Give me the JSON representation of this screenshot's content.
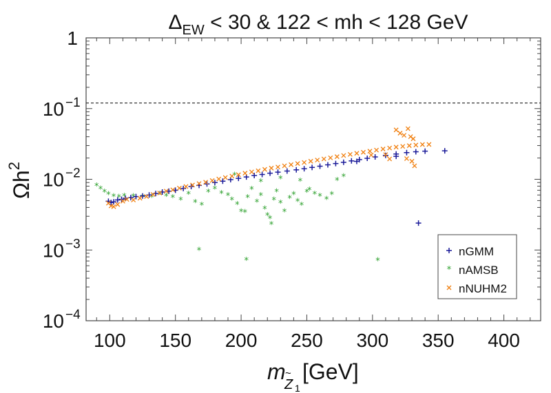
{
  "chart_data": {
    "type": "scatter",
    "title": {
      "base": "Δ",
      "sub": "EW",
      "rest": " < 30 & 122 < mh < 128 GeV"
    },
    "xlabel": {
      "m": "m",
      "z": "Z",
      "zsub": "1",
      "tilde": "~",
      "unit": " [GeV]"
    },
    "ylabel": {
      "base": "Ωh",
      "sup": "2"
    },
    "xlim": [
      82,
      428
    ],
    "ylim_log10": [
      -4,
      0
    ],
    "x_ticks": [
      100,
      150,
      200,
      250,
      300,
      350,
      400
    ],
    "y_ticks": [
      {
        "value": 1,
        "base": "1",
        "sup": ""
      },
      {
        "value": 0.1,
        "base": "10",
        "sup": "−1"
      },
      {
        "value": 0.01,
        "base": "10",
        "sup": "−2"
      },
      {
        "value": 0.001,
        "base": "10",
        "sup": "−3"
      },
      {
        "value": 0.0001,
        "base": "10",
        "sup": "−4"
      }
    ],
    "reference_line": {
      "y": 0.12,
      "style": "dashed"
    },
    "legend_position": "bottom-right",
    "series": [
      {
        "name": "nGMM",
        "marker": "+",
        "color": "#1a1a99",
        "points": [
          [
            99,
            0.0049
          ],
          [
            101,
            0.0047
          ],
          [
            103,
            0.0048
          ],
          [
            106,
            0.0051
          ],
          [
            109,
            0.0052
          ],
          [
            112,
            0.0054
          ],
          [
            116,
            0.0055
          ],
          [
            120,
            0.0057
          ],
          [
            125,
            0.0058
          ],
          [
            130,
            0.006
          ],
          [
            135,
            0.0063
          ],
          [
            140,
            0.0066
          ],
          [
            145,
            0.0068
          ],
          [
            150,
            0.007
          ],
          [
            156,
            0.0074
          ],
          [
            162,
            0.0079
          ],
          [
            168,
            0.0082
          ],
          [
            174,
            0.0086
          ],
          [
            180,
            0.009
          ],
          [
            186,
            0.0094
          ],
          [
            192,
            0.0099
          ],
          [
            198,
            0.0103
          ],
          [
            204,
            0.0108
          ],
          [
            210,
            0.0113
          ],
          [
            216,
            0.0117
          ],
          [
            222,
            0.0122
          ],
          [
            228,
            0.0126
          ],
          [
            235,
            0.0131
          ],
          [
            242,
            0.0136
          ],
          [
            248,
            0.0141
          ],
          [
            254,
            0.0147
          ],
          [
            260,
            0.0153
          ],
          [
            266,
            0.016
          ],
          [
            272,
            0.0167
          ],
          [
            278,
            0.0174
          ],
          [
            284,
            0.0182
          ],
          [
            290,
            0.019
          ],
          [
            296,
            0.0198
          ],
          [
            302,
            0.0207
          ],
          [
            310,
            0.0218
          ],
          [
            318,
            0.0228
          ],
          [
            326,
            0.0238
          ],
          [
            333,
            0.0245
          ],
          [
            340,
            0.025
          ],
          [
            355,
            0.0253
          ],
          [
            335,
            0.0024
          ],
          [
            318,
            0.0211
          ],
          [
            288,
            0.0179
          ]
        ]
      },
      {
        "name": "nAMSB",
        "marker": "*",
        "color": "#2ca02c",
        "points": [
          [
            90,
            0.0081
          ],
          [
            93,
            0.0073
          ],
          [
            96,
            0.0066
          ],
          [
            99,
            0.0061
          ],
          [
            103,
            0.0057
          ],
          [
            107,
            0.0056
          ],
          [
            111,
            0.0058
          ],
          [
            118,
            0.0057
          ],
          [
            125,
            0.0056
          ],
          [
            132,
            0.0056
          ],
          [
            138,
            0.0062
          ],
          [
            143,
            0.0058
          ],
          [
            148,
            0.0055
          ],
          [
            154,
            0.0051
          ],
          [
            160,
            0.0062
          ],
          [
            165,
            0.0047
          ],
          [
            170,
            0.0043
          ],
          [
            175,
            0.0066
          ],
          [
            180,
            0.0073
          ],
          [
            185,
            0.0063
          ],
          [
            190,
            0.0059
          ],
          [
            193,
            0.0051
          ],
          [
            197,
            0.0044
          ],
          [
            200,
            0.0035
          ],
          [
            203,
            0.0034
          ],
          [
            205,
            0.0055
          ],
          [
            208,
            0.0072
          ],
          [
            212,
            0.0048
          ],
          [
            215,
            0.0059
          ],
          [
            218,
            0.0038
          ],
          [
            220,
            0.0031
          ],
          [
            222,
            0.0028
          ],
          [
            223,
            0.0023
          ],
          [
            225,
            0.0051
          ],
          [
            227,
            0.0067
          ],
          [
            230,
            0.0046
          ],
          [
            233,
            0.0035
          ],
          [
            237,
            0.0054
          ],
          [
            240,
            0.0061
          ],
          [
            243,
            0.0049
          ],
          [
            246,
            0.0043
          ],
          [
            250,
            0.0066
          ],
          [
            252,
            0.0071
          ],
          [
            256,
            0.0062
          ],
          [
            260,
            0.0058
          ],
          [
            265,
            0.0052
          ],
          [
            269,
            0.0061
          ],
          [
            273,
            0.0097
          ],
          [
            278,
            0.0109
          ],
          [
            195,
            0.0114
          ],
          [
            215,
            0.0092
          ],
          [
            230,
            0.0102
          ],
          [
            245,
            0.0095
          ],
          [
            168,
            0.001
          ],
          [
            204,
            0.00072
          ],
          [
            304,
            0.00071
          ]
        ]
      },
      {
        "name": "nNUHM2",
        "marker": "x",
        "color": "#f07f0f",
        "points": [
          [
            99,
            0.0046
          ],
          [
            101,
            0.0042
          ],
          [
            103,
            0.0041
          ],
          [
            106,
            0.0044
          ],
          [
            110,
            0.0049
          ],
          [
            113,
            0.0052
          ],
          [
            118,
            0.0051
          ],
          [
            123,
            0.0054
          ],
          [
            128,
            0.0057
          ],
          [
            133,
            0.0061
          ],
          [
            138,
            0.0064
          ],
          [
            143,
            0.0068
          ],
          [
            148,
            0.0071
          ],
          [
            153,
            0.0075
          ],
          [
            158,
            0.0079
          ],
          [
            163,
            0.0083
          ],
          [
            168,
            0.0087
          ],
          [
            173,
            0.0091
          ],
          [
            178,
            0.0096
          ],
          [
            183,
            0.0101
          ],
          [
            188,
            0.0106
          ],
          [
            193,
            0.0111
          ],
          [
            198,
            0.0116
          ],
          [
            203,
            0.0122
          ],
          [
            208,
            0.0127
          ],
          [
            213,
            0.0132
          ],
          [
            218,
            0.0138
          ],
          [
            223,
            0.0144
          ],
          [
            228,
            0.0149
          ],
          [
            233,
            0.0155
          ],
          [
            238,
            0.0161
          ],
          [
            243,
            0.0167
          ],
          [
            248,
            0.0173
          ],
          [
            253,
            0.018
          ],
          [
            258,
            0.0187
          ],
          [
            263,
            0.0194
          ],
          [
            268,
            0.0201
          ],
          [
            273,
            0.0209
          ],
          [
            278,
            0.0217
          ],
          [
            283,
            0.0225
          ],
          [
            288,
            0.0233
          ],
          [
            293,
            0.0241
          ],
          [
            298,
            0.025
          ],
          [
            303,
            0.0259
          ],
          [
            308,
            0.0268
          ],
          [
            313,
            0.0277
          ],
          [
            318,
            0.0285
          ],
          [
            323,
            0.0292
          ],
          [
            328,
            0.0299
          ],
          [
            333,
            0.0305
          ],
          [
            338,
            0.031
          ],
          [
            343,
            0.0311
          ],
          [
            318,
            0.0499
          ],
          [
            321,
            0.0449
          ],
          [
            324,
            0.0419
          ],
          [
            327,
            0.052
          ],
          [
            329,
            0.0401
          ],
          [
            331,
            0.0374
          ],
          [
            326,
            0.0196
          ],
          [
            330,
            0.018
          ],
          [
            332,
            0.0155
          ],
          [
            299,
            0.022
          ],
          [
            310,
            0.0223
          ],
          [
            313,
            0.0194
          ]
        ]
      }
    ]
  }
}
